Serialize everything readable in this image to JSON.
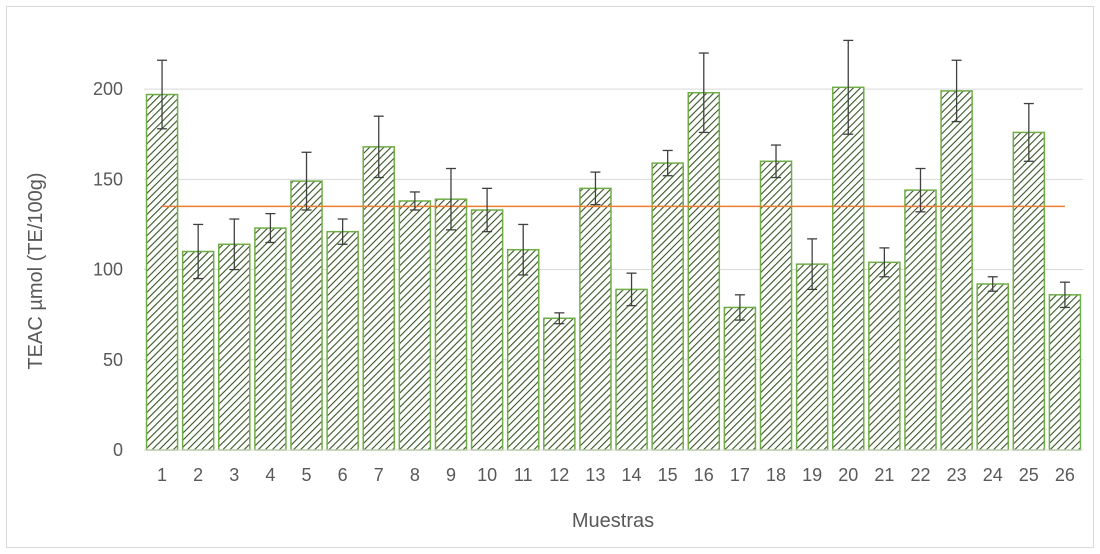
{
  "chart_data": {
    "type": "bar",
    "title": "",
    "xlabel": "Muestras",
    "ylabel": "TEAC µmol (TE/100g)",
    "categories": [
      "1",
      "2",
      "3",
      "4",
      "5",
      "6",
      "7",
      "8",
      "9",
      "10",
      "11",
      "12",
      "13",
      "14",
      "15",
      "16",
      "17",
      "18",
      "19",
      "20",
      "21",
      "22",
      "23",
      "24",
      "25",
      "26"
    ],
    "values": [
      197,
      110,
      114,
      123,
      149,
      121,
      168,
      138,
      139,
      133,
      111,
      73,
      145,
      89,
      159,
      198,
      79,
      160,
      103,
      201,
      104,
      144,
      199,
      92,
      176,
      86
    ],
    "error_low": [
      19,
      15,
      14,
      8,
      16,
      7,
      17,
      5,
      17,
      12,
      14,
      3,
      9,
      9,
      7,
      22,
      7,
      9,
      14,
      26,
      8,
      12,
      17,
      4,
      16,
      7
    ],
    "error_high": [
      19,
      15,
      14,
      8,
      16,
      7,
      17,
      5,
      17,
      12,
      14,
      3,
      9,
      9,
      7,
      22,
      7,
      9,
      14,
      26,
      8,
      12,
      17,
      4,
      16,
      7
    ],
    "reference_line": 135,
    "ylim": [
      0,
      225
    ],
    "yticks": [
      "0",
      "50",
      "100",
      "150",
      "200"
    ],
    "ytick_values": [
      0,
      50,
      100,
      150,
      200
    ],
    "grid": true,
    "colors": {
      "bar_stroke": "#70ad47",
      "hatch": "#375623",
      "error_bar": "#404040",
      "reference_line": "#ed7d31",
      "grid": "#d9d9d9",
      "text": "#595959"
    }
  }
}
